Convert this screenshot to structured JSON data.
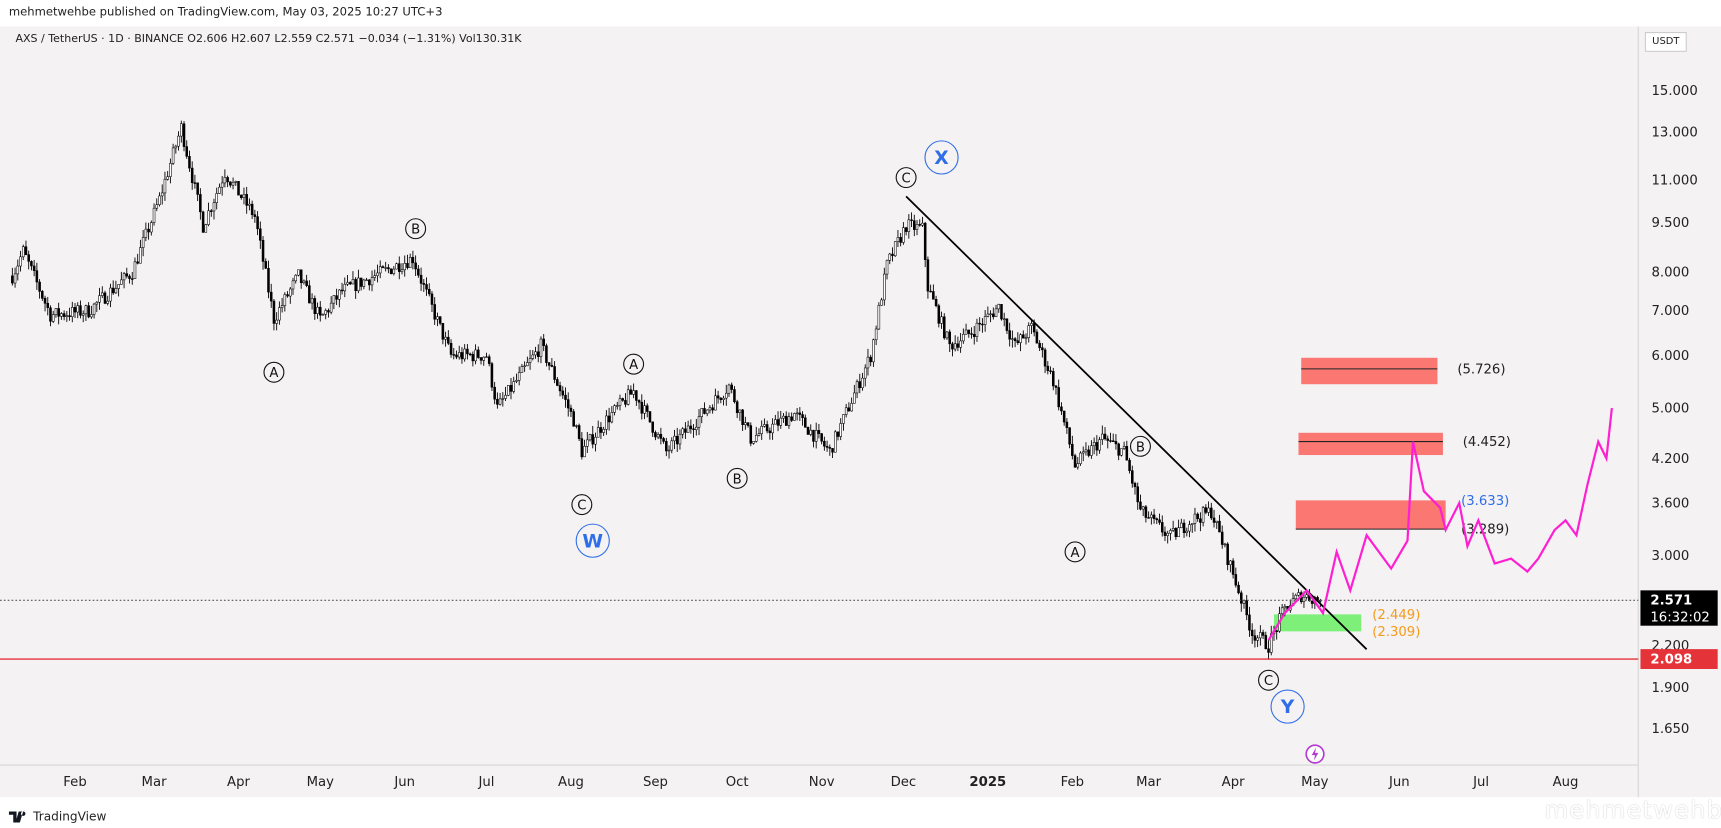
{
  "header": {
    "published": "mehmetwehbe published on TradingView.com, May 03, 2025 10:27 UTC+3",
    "legend": "AXS / TetherUS · 1D · BINANCE  O2.606  H2.607  L2.559  C2.571  −0.034 (−1.31%)  Vol130.31K",
    "currency": "USDT"
  },
  "footer": {
    "brand": "TradingView",
    "watermark": "mehmetwehbe"
  },
  "colors": {
    "background": "#f4f2f3",
    "candle": "#000000",
    "projection": "#ff1fd2",
    "support": "#e5333a",
    "resistance_zone": "#fa7772",
    "buy_zone": "#7ef07a",
    "wave_blue": "#2f6ee8",
    "buy_label": "#f59b1b"
  },
  "chart_data": {
    "type": "candlestick",
    "scale": "log",
    "ylim": [
      1.55,
      16.5
    ],
    "y_ticks": [
      "15.000",
      "13.000",
      "11.000",
      "9.500",
      "8.000",
      "7.000",
      "6.000",
      "5.000",
      "4.200",
      "3.600",
      "3.000",
      "2.200",
      "1.900",
      "1.650"
    ],
    "x_ticks": [
      {
        "label": "Feb",
        "date": "2024-02-01"
      },
      {
        "label": "Mar",
        "date": "2024-03-01"
      },
      {
        "label": "Apr",
        "date": "2024-04-01"
      },
      {
        "label": "May",
        "date": "2024-05-01"
      },
      {
        "label": "Jun",
        "date": "2024-06-01"
      },
      {
        "label": "Jul",
        "date": "2024-07-01"
      },
      {
        "label": "Aug",
        "date": "2024-08-01"
      },
      {
        "label": "Sep",
        "date": "2024-09-01"
      },
      {
        "label": "Oct",
        "date": "2024-10-01"
      },
      {
        "label": "Nov",
        "date": "2024-11-01"
      },
      {
        "label": "Dec",
        "date": "2024-12-01"
      },
      {
        "label": "2025",
        "date": "2025-01-01",
        "bold": true
      },
      {
        "label": "Feb",
        "date": "2025-02-01"
      },
      {
        "label": "Mar",
        "date": "2025-03-01"
      },
      {
        "label": "Apr",
        "date": "2025-04-01"
      },
      {
        "label": "May",
        "date": "2025-05-01"
      },
      {
        "label": "Jun",
        "date": "2025-06-01"
      },
      {
        "label": "Jul",
        "date": "2025-07-01"
      },
      {
        "label": "Aug",
        "date": "2025-08-01"
      }
    ],
    "price_path": [
      [
        "2024-01-09",
        7.9
      ],
      [
        "2024-01-13",
        8.6
      ],
      [
        "2024-01-23",
        6.9
      ],
      [
        "2024-02-06",
        7.0
      ],
      [
        "2024-02-22",
        8.0
      ],
      [
        "2024-03-03",
        10.3
      ],
      [
        "2024-03-11",
        13.2
      ],
      [
        "2024-03-19",
        9.4
      ],
      [
        "2024-03-27",
        11.3
      ],
      [
        "2024-04-07",
        9.7
      ],
      [
        "2024-04-14",
        6.8
      ],
      [
        "2024-04-23",
        7.9
      ],
      [
        "2024-05-01",
        6.8
      ],
      [
        "2024-05-09",
        7.5
      ],
      [
        "2024-05-21",
        7.9
      ],
      [
        "2024-06-04",
        8.4
      ],
      [
        "2024-06-08",
        7.6
      ],
      [
        "2024-06-18",
        6.0
      ],
      [
        "2024-07-01",
        6.0
      ],
      [
        "2024-07-05",
        5.0
      ],
      [
        "2024-07-21",
        6.2
      ],
      [
        "2024-08-02",
        4.8
      ],
      [
        "2024-08-05",
        4.3
      ],
      [
        "2024-08-14",
        4.8
      ],
      [
        "2024-08-24",
        5.3
      ],
      [
        "2024-09-05",
        4.3
      ],
      [
        "2024-09-28",
        5.4
      ],
      [
        "2024-10-06",
        4.5
      ],
      [
        "2024-10-22",
        4.9
      ],
      [
        "2024-11-04",
        4.3
      ],
      [
        "2024-11-19",
        6.0
      ],
      [
        "2024-11-25",
        8.2
      ],
      [
        "2024-12-02",
        9.4
      ],
      [
        "2024-12-08",
        9.3
      ],
      [
        "2024-12-10",
        7.6
      ],
      [
        "2024-12-18",
        6.2
      ],
      [
        "2024-12-26",
        6.5
      ],
      [
        "2025-01-05",
        7.1
      ],
      [
        "2025-01-11",
        6.2
      ],
      [
        "2025-01-17",
        6.6
      ],
      [
        "2025-01-25",
        5.5
      ],
      [
        "2025-02-02",
        4.1
      ],
      [
        "2025-02-12",
        4.5
      ],
      [
        "2025-02-20",
        4.3
      ],
      [
        "2025-02-26",
        3.5
      ],
      [
        "2025-03-09",
        3.2
      ],
      [
        "2025-03-17",
        3.4
      ],
      [
        "2025-03-24",
        3.5
      ],
      [
        "2025-03-31",
        2.9
      ],
      [
        "2025-04-08",
        2.3
      ],
      [
        "2025-04-14",
        2.2
      ],
      [
        "2025-04-20",
        2.5
      ],
      [
        "2025-04-26",
        2.62
      ],
      [
        "2025-05-03",
        2.571
      ]
    ],
    "last_price": {
      "value": "2.571",
      "countdown": "16:32:02"
    },
    "support_line": {
      "value": "2.098"
    },
    "trendline": [
      [
        "2024-12-02",
        10.4
      ],
      [
        "2025-05-20",
        2.17
      ]
    ],
    "projection": [
      [
        "2025-04-14",
        2.24
      ],
      [
        "2025-04-20",
        2.46
      ],
      [
        "2025-04-28",
        2.66
      ],
      [
        "2025-05-04",
        2.46
      ],
      [
        "2025-05-09",
        3.04
      ],
      [
        "2025-05-14",
        2.66
      ],
      [
        "2025-05-20",
        3.22
      ],
      [
        "2025-05-29",
        2.87
      ],
      [
        "2025-06-04",
        3.16
      ],
      [
        "2025-06-06",
        4.45
      ],
      [
        "2025-06-10",
        3.75
      ],
      [
        "2025-06-16",
        3.54
      ],
      [
        "2025-06-18",
        3.28
      ],
      [
        "2025-06-23",
        3.6
      ],
      [
        "2025-06-26",
        3.1
      ],
      [
        "2025-06-30",
        3.39
      ],
      [
        "2025-07-06",
        2.92
      ],
      [
        "2025-07-12",
        2.97
      ],
      [
        "2025-07-18",
        2.84
      ],
      [
        "2025-07-22",
        2.97
      ],
      [
        "2025-07-28",
        3.28
      ],
      [
        "2025-08-01",
        3.39
      ],
      [
        "2025-08-05",
        3.22
      ],
      [
        "2025-08-09",
        3.83
      ],
      [
        "2025-08-13",
        4.45
      ],
      [
        "2025-08-16",
        4.2
      ],
      [
        "2025-08-18",
        5.0
      ]
    ],
    "zones": [
      {
        "kind": "resistance",
        "from": "2025-04-26",
        "to": "2025-06-15",
        "top": 5.95,
        "bottom": 5.43,
        "level": 5.726,
        "label": "(5.726)"
      },
      {
        "kind": "resistance",
        "from": "2025-04-25",
        "to": "2025-06-17",
        "top": 4.59,
        "bottom": 4.25,
        "level": 4.452,
        "label": "(4.452)"
      },
      {
        "kind": "resistance",
        "from": "2025-04-24",
        "to": "2025-06-18",
        "top": 3.633,
        "bottom": 3.289,
        "label_top": "(3.633)",
        "label_bottom": "(3.289)"
      },
      {
        "kind": "buy",
        "from": "2025-04-16",
        "to": "2025-05-18",
        "top": 2.449,
        "bottom": 2.309,
        "label_top": "(2.449)",
        "label_bottom": "(2.309)"
      }
    ],
    "wave_labels": [
      {
        "text": "A",
        "date": "2024-04-14",
        "price": 5.66
      },
      {
        "text": "B",
        "date": "2024-06-05",
        "price": 9.3
      },
      {
        "text": "C",
        "date": "2024-08-05",
        "price": 3.58
      },
      {
        "text": "W",
        "date": "2024-08-09",
        "price": 3.16,
        "degree": "major"
      },
      {
        "text": "A",
        "date": "2024-08-24",
        "price": 5.82
      },
      {
        "text": "B",
        "date": "2024-10-01",
        "price": 3.92
      },
      {
        "text": "C",
        "date": "2024-12-02",
        "price": 11.1
      },
      {
        "text": "X",
        "date": "2024-12-15",
        "price": 11.9,
        "degree": "major"
      },
      {
        "text": "A",
        "date": "2025-02-02",
        "price": 3.04
      },
      {
        "text": "B",
        "date": "2025-02-26",
        "price": 4.38
      },
      {
        "text": "C",
        "date": "2025-04-14",
        "price": 1.95
      },
      {
        "text": "Y",
        "date": "2025-04-21",
        "price": 1.78,
        "degree": "major"
      }
    ]
  }
}
